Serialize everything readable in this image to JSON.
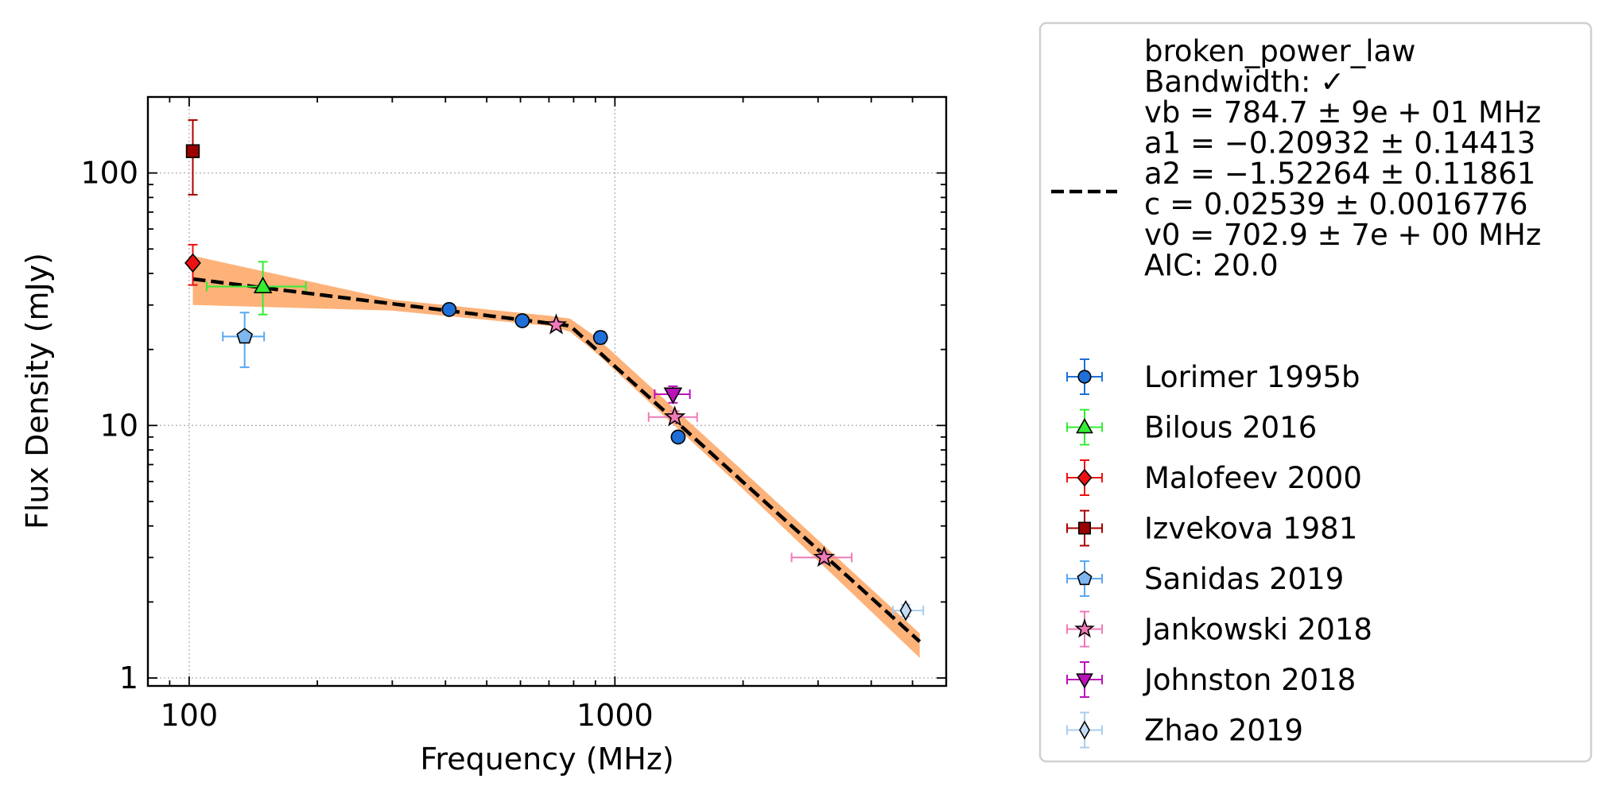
{
  "chart_data": {
    "type": "scatter",
    "xlabel": "Frequency (MHz)",
    "ylabel": "Flux Density (mJy)",
    "x_scale": "log",
    "y_scale": "log",
    "xlim": [
      80,
      6000
    ],
    "ylim": [
      0.93,
      200
    ],
    "x_ticks": [
      "100",
      "1000"
    ],
    "x_tick_values": [
      100,
      1000
    ],
    "y_ticks": [
      "1",
      "10",
      "100"
    ],
    "y_tick_values": [
      1,
      10,
      100
    ],
    "grid": true,
    "legend_position": "outside-right",
    "fit": {
      "model_label": "broken_power_law",
      "lines": [
        "Bandwidth: ✓",
        "vb = 784.7 ± 9e + 01 MHz",
        "a1 = −0.20932 ± 0.14413",
        "a2 = −1.52264 ± 0.11861",
        "c = 0.02539 ± 0.0016776",
        "v0 = 702.9 ± 7e + 00 MHz",
        "AIC: 20.0"
      ],
      "vb": 784.7,
      "a1": -0.20932,
      "a2": -1.52264,
      "c": 0.02539,
      "v0": 702.9,
      "x_range": [
        102,
        5200
      ],
      "color": "#000000",
      "band_color": "#fdb27a",
      "band": [
        {
          "x": 102,
          "lo": 30,
          "hi": 47
        },
        {
          "x": 300,
          "lo": 28.5,
          "hi": 31.5
        },
        {
          "x": 700,
          "lo": 24.8,
          "hi": 27.2
        },
        {
          "x": 784.7,
          "lo": 23.5,
          "hi": 26.5
        },
        {
          "x": 900,
          "lo": 19.5,
          "hi": 22.5
        },
        {
          "x": 2000,
          "lo": 5.6,
          "hi": 6.6
        },
        {
          "x": 5200,
          "lo": 1.2,
          "hi": 1.5
        }
      ]
    },
    "series": [
      {
        "name": "Lorimer 1995b",
        "marker": "circle",
        "color": "#1f6fd6",
        "ecolor": "#1f6fd6",
        "points": [
          {
            "x": 408,
            "y": 28.8,
            "ylo": 27.8,
            "yhi": 29.8,
            "xlo": 408,
            "xhi": 408
          },
          {
            "x": 606,
            "y": 26.0,
            "ylo": 25.2,
            "yhi": 26.8,
            "xlo": 606,
            "xhi": 606
          },
          {
            "x": 925,
            "y": 22.3,
            "ylo": 21.1,
            "yhi": 23.5,
            "xlo": 925,
            "xhi": 925
          },
          {
            "x": 1408,
            "y": 9.0,
            "ylo": 8.6,
            "yhi": 9.4,
            "xlo": 1408,
            "xhi": 1408
          }
        ]
      },
      {
        "name": "Bilous 2016",
        "marker": "triangle-up",
        "color": "#33ee33",
        "ecolor": "#33ee33",
        "points": [
          {
            "x": 149,
            "y": 35.5,
            "ylo": 27.5,
            "yhi": 44.5,
            "xlo": 110,
            "xhi": 188
          }
        ]
      },
      {
        "name": "Malofeev 2000",
        "marker": "diamond",
        "color": "#ee1111",
        "ecolor": "#ee1111",
        "points": [
          {
            "x": 102,
            "y": 44,
            "ylo": 36,
            "yhi": 52,
            "xlo": 102,
            "xhi": 102
          }
        ]
      },
      {
        "name": "Izvekova 1981",
        "marker": "square",
        "color": "#990000",
        "ecolor": "#aa0000",
        "points": [
          {
            "x": 102,
            "y": 122,
            "ylo": 82,
            "yhi": 162,
            "xlo": 102,
            "xhi": 102
          }
        ]
      },
      {
        "name": "Sanidas 2019",
        "marker": "pentagon",
        "color": "#7fb6f0",
        "ecolor": "#5aa8f0",
        "points": [
          {
            "x": 135,
            "y": 22.5,
            "ylo": 17,
            "yhi": 28,
            "xlo": 120,
            "xhi": 150
          }
        ]
      },
      {
        "name": "Jankowski 2018",
        "marker": "star",
        "color": "#f07ab8",
        "ecolor": "#f07ab8",
        "points": [
          {
            "x": 728,
            "y": 25.0,
            "ylo": 24.0,
            "yhi": 26.0,
            "xlo": 728,
            "xhi": 728
          },
          {
            "x": 1382,
            "y": 10.8,
            "ylo": 10.3,
            "yhi": 11.4,
            "xlo": 1200,
            "xhi": 1560
          },
          {
            "x": 3100,
            "y": 3.0,
            "ylo": 2.85,
            "yhi": 3.15,
            "xlo": 2600,
            "xhi": 3600
          }
        ]
      },
      {
        "name": "Johnston 2018",
        "marker": "triangle-down",
        "color": "#bb11bb",
        "ecolor": "#bb11bb",
        "points": [
          {
            "x": 1369,
            "y": 13.3,
            "ylo": 12.3,
            "yhi": 14.3,
            "xlo": 1240,
            "xhi": 1500
          }
        ]
      },
      {
        "name": "Zhao 2019",
        "marker": "thin-diamond",
        "color": "#c6dcf5",
        "ecolor": "#a9cdf0",
        "points": [
          {
            "x": 4820,
            "y": 1.85,
            "ylo": 1.75,
            "yhi": 1.95,
            "xlo": 4500,
            "xhi": 5300
          }
        ]
      }
    ]
  }
}
